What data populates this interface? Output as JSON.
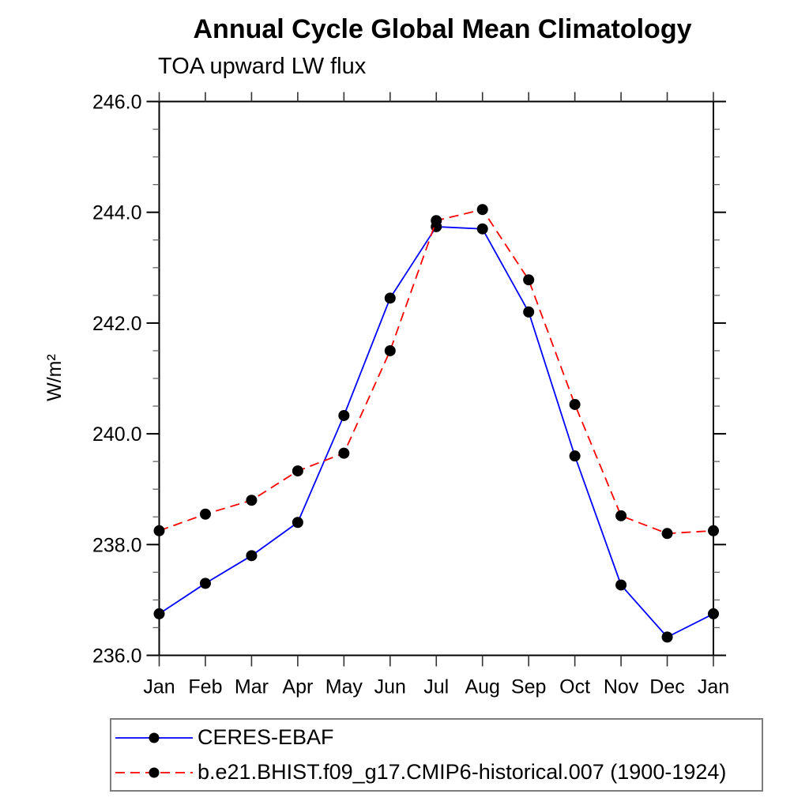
{
  "chart_data": {
    "type": "line",
    "title": "Annual Cycle Global Mean Climatology",
    "subtitle": "TOA upward LW flux",
    "xlabel": "",
    "ylabel": "W/m²",
    "categories": [
      "Jan",
      "Feb",
      "Mar",
      "Apr",
      "May",
      "Jun",
      "Jul",
      "Aug",
      "Sep",
      "Oct",
      "Nov",
      "Dec",
      "Jan"
    ],
    "series": [
      {
        "name": "CERES-EBAF",
        "color": "#0000ff",
        "line_style": "solid",
        "marker": "filled-circle",
        "marker_color": "#000000",
        "values": [
          236.75,
          237.3,
          237.8,
          238.4,
          240.33,
          242.45,
          243.74,
          243.7,
          242.2,
          239.6,
          237.27,
          236.33,
          236.75
        ]
      },
      {
        "name": "b.e21.BHIST.f09_g17.CMIP6-historical.007 (1900-1924)",
        "color": "#ff0000",
        "line_style": "dashed",
        "marker": "filled-circle",
        "marker_color": "#000000",
        "values": [
          238.25,
          238.55,
          238.8,
          239.33,
          239.65,
          241.5,
          243.85,
          244.05,
          242.78,
          240.53,
          238.52,
          238.2,
          238.25
        ]
      }
    ],
    "ylim": [
      236.0,
      246.0
    ],
    "ytick_major_interval": 2.0,
    "ytick_minor_interval": 0.5,
    "ytick_labels": [
      "236.0",
      "238.0",
      "240.0",
      "242.0",
      "244.0",
      "246.0"
    ],
    "grid": false,
    "legend_position": "bottom-left"
  }
}
